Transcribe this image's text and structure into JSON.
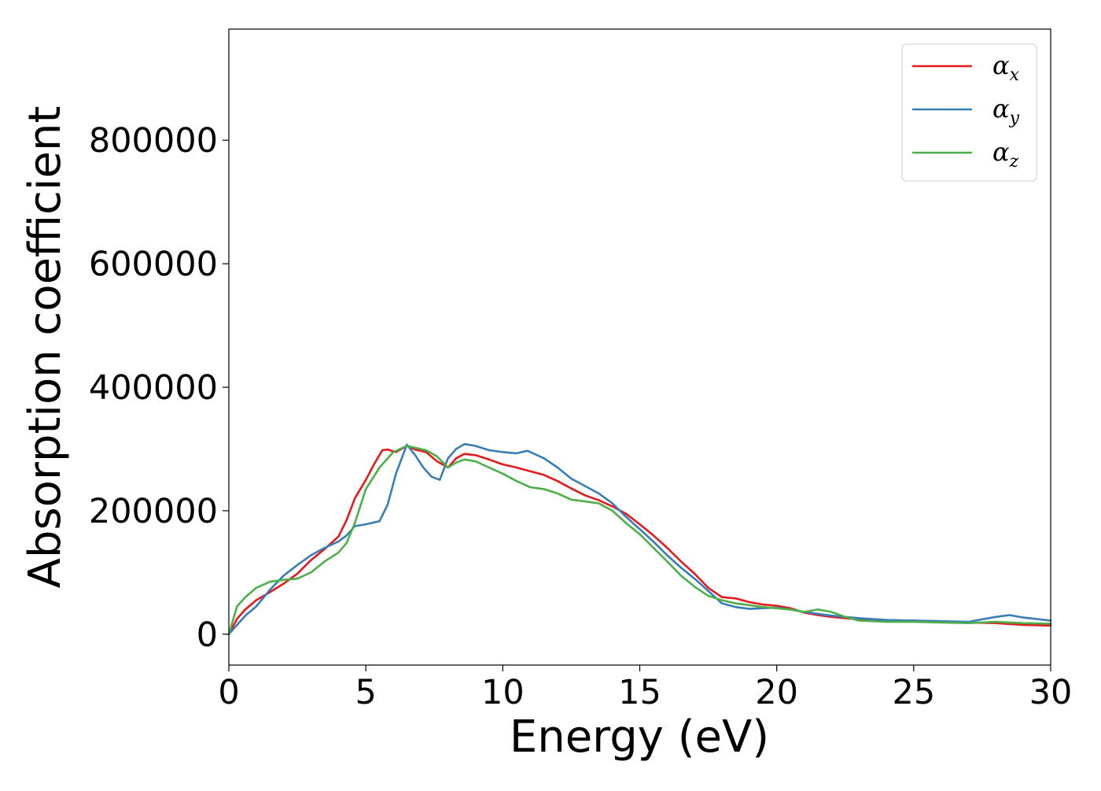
{
  "chart_data": {
    "type": "line",
    "xlabel": "Energy (eV)",
    "ylabel": "Absorption coefficient",
    "xlim": [
      0,
      30
    ],
    "ylim": [
      -50000,
      980000
    ],
    "xticks": [
      0,
      5,
      10,
      15,
      20,
      25,
      30
    ],
    "xtick_labels": [
      "0",
      "5",
      "10",
      "15",
      "20",
      "25",
      "30"
    ],
    "yticks": [
      0,
      200000,
      400000,
      600000,
      800000
    ],
    "ytick_labels": [
      "0",
      "200000",
      "400000",
      "600000",
      "800000"
    ],
    "grid": false,
    "legend_position": "top-right",
    "series": [
      {
        "name": "α_x",
        "symbol": "α",
        "subscript": "x",
        "color": "#e41a1c",
        "x": [
          0,
          0.3,
          0.6,
          1.0,
          1.5,
          2.0,
          2.5,
          3.0,
          3.5,
          4.0,
          4.3,
          4.6,
          5.0,
          5.3,
          5.6,
          5.8,
          6.1,
          6.5,
          6.8,
          7.2,
          7.6,
          8.0,
          8.3,
          8.6,
          9.0,
          9.5,
          10.0,
          10.5,
          11.0,
          11.5,
          12.0,
          12.5,
          13.0,
          13.5,
          14.0,
          14.5,
          15.0,
          15.5,
          16.0,
          16.5,
          17.0,
          17.5,
          18.0,
          18.5,
          19.0,
          19.5,
          20.0,
          20.5,
          21.0,
          21.5,
          22.0,
          23.0,
          24.0,
          25.0,
          26.0,
          27.0,
          28.0,
          29.0,
          30.0
        ],
        "y": [
          0,
          25000,
          40000,
          55000,
          68000,
          82000,
          98000,
          120000,
          138000,
          158000,
          185000,
          220000,
          250000,
          275000,
          298000,
          299000,
          295000,
          305000,
          299000,
          295000,
          280000,
          270000,
          285000,
          292000,
          290000,
          283000,
          275000,
          270000,
          264000,
          258000,
          248000,
          236000,
          225000,
          217000,
          207000,
          195000,
          178000,
          160000,
          140000,
          118000,
          98000,
          75000,
          60000,
          58000,
          52000,
          48000,
          46000,
          42000,
          35000,
          31000,
          28000,
          24000,
          22000,
          22000,
          21000,
          19000,
          18000,
          15000,
          14000
        ]
      },
      {
        "name": "α_y",
        "symbol": "α",
        "subscript": "y",
        "color": "#377eb8",
        "x": [
          0,
          0.3,
          0.6,
          1.0,
          1.5,
          2.0,
          2.5,
          3.0,
          3.5,
          4.0,
          4.3,
          4.6,
          5.0,
          5.5,
          5.8,
          6.1,
          6.5,
          6.8,
          7.1,
          7.4,
          7.7,
          8.0,
          8.3,
          8.6,
          9.0,
          9.5,
          10.0,
          10.5,
          10.9,
          11.5,
          12.0,
          12.5,
          13.0,
          13.5,
          14.0,
          14.5,
          15.0,
          15.5,
          16.0,
          16.5,
          17.0,
          17.5,
          18.0,
          18.5,
          19.0,
          19.5,
          20.0,
          20.5,
          21.0,
          21.5,
          22.0,
          23.0,
          24.0,
          25.0,
          26.0,
          27.0,
          27.5,
          28.0,
          28.5,
          29.0,
          30.0
        ],
        "y": [
          0,
          15000,
          30000,
          45000,
          72000,
          95000,
          112000,
          128000,
          140000,
          150000,
          160000,
          175000,
          178000,
          183000,
          210000,
          260000,
          307000,
          290000,
          270000,
          255000,
          250000,
          285000,
          300000,
          308000,
          305000,
          298000,
          295000,
          293000,
          297000,
          285000,
          270000,
          252000,
          240000,
          228000,
          212000,
          190000,
          170000,
          150000,
          128000,
          108000,
          90000,
          70000,
          50000,
          44000,
          41000,
          42000,
          43000,
          40000,
          36000,
          33000,
          30000,
          26000,
          23000,
          22000,
          21000,
          20000,
          24000,
          28000,
          31000,
          27000,
          22000
        ]
      },
      {
        "name": "α_z",
        "symbol": "α",
        "subscript": "z",
        "color": "#4daf4a",
        "x": [
          0,
          0.3,
          0.6,
          1.0,
          1.5,
          2.0,
          2.5,
          3.0,
          3.5,
          4.0,
          4.3,
          4.6,
          5.0,
          5.5,
          6.0,
          6.5,
          6.8,
          7.2,
          7.6,
          8.0,
          8.3,
          8.6,
          9.0,
          9.5,
          10.0,
          10.5,
          11.0,
          11.5,
          12.0,
          12.5,
          13.0,
          13.5,
          14.0,
          14.5,
          15.0,
          15.5,
          16.0,
          16.5,
          17.0,
          17.5,
          18.0,
          18.5,
          19.0,
          19.5,
          20.0,
          20.5,
          21.0,
          21.5,
          22.0,
          22.5,
          23.0,
          24.0,
          25.0,
          26.0,
          27.0,
          28.0,
          29.0,
          30.0
        ],
        "y": [
          0,
          45000,
          60000,
          75000,
          85000,
          88000,
          90000,
          100000,
          118000,
          132000,
          148000,
          180000,
          235000,
          270000,
          295000,
          305000,
          302000,
          298000,
          288000,
          270000,
          278000,
          283000,
          280000,
          270000,
          260000,
          248000,
          238000,
          235000,
          228000,
          218000,
          215000,
          212000,
          200000,
          180000,
          162000,
          140000,
          118000,
          95000,
          77000,
          62000,
          55000,
          50000,
          47000,
          44000,
          42000,
          40000,
          36000,
          40000,
          36000,
          28000,
          22000,
          20000,
          20000,
          19000,
          18000,
          20000,
          18000,
          17000
        ]
      }
    ]
  }
}
